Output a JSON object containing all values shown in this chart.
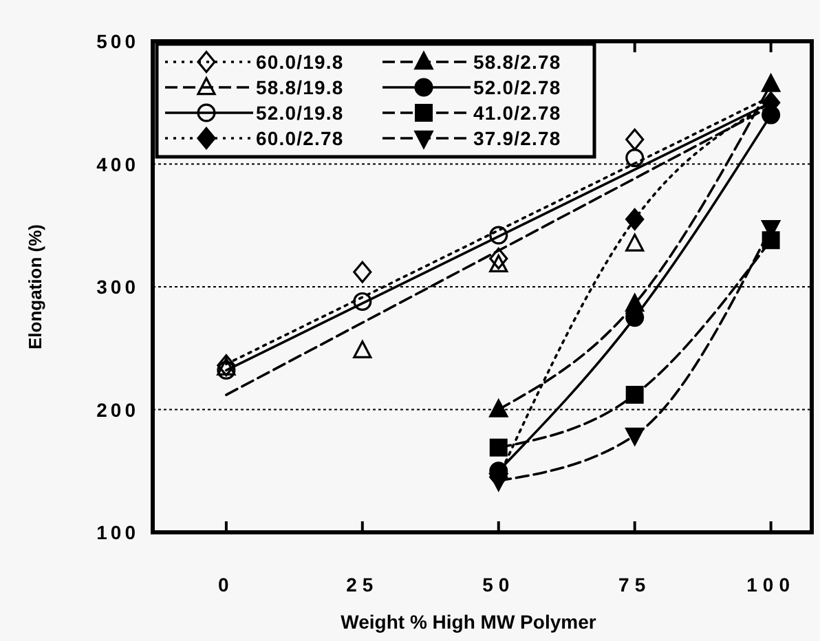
{
  "chart_data": {
    "type": "line",
    "xlabel": "Weight % High MW Polymer",
    "ylabel": "Elongation (%)",
    "xlim": [
      -13.5,
      107.5
    ],
    "ylim": [
      100,
      500
    ],
    "xticks": [
      0,
      25,
      50,
      75,
      100
    ],
    "yticks": [
      100,
      200,
      300,
      400,
      500
    ],
    "grid": "y",
    "legend": "top left",
    "series": [
      {
        "name": "60.0/19.8",
        "type": "scatter",
        "color": "#000000",
        "marker": "diamond",
        "line_style": "dotted",
        "x": [
          0,
          25,
          50,
          75
        ],
        "values": [
          236,
          312,
          323,
          420
        ]
      },
      {
        "name": "58.8/19.8",
        "type": "scatter",
        "color": "#000000",
        "marker": "triangle",
        "line_style": "dashed",
        "x": [
          0,
          25,
          50,
          75
        ],
        "values": [
          234,
          248,
          318,
          335
        ]
      },
      {
        "name": "52.0/19.8",
        "type": "scatter",
        "color": "#000000",
        "marker": "circle",
        "line_style": "solid",
        "x": [
          0,
          25,
          50,
          75
        ],
        "values": [
          232,
          288,
          342,
          405
        ]
      },
      {
        "name": "60.0/2.78",
        "color": "#000000",
        "marker": "diamond",
        "line_style": "dotted",
        "x": [
          50,
          75,
          100
        ],
        "values": [
          145,
          355,
          450
        ]
      },
      {
        "name": "58.8/2.78",
        "color": "#000000",
        "marker": "triangle",
        "line_style": "dashed",
        "x": [
          50,
          75,
          100
        ],
        "values": [
          200,
          286,
          465
        ]
      },
      {
        "name": "52.0/2.78",
        "color": "#000000",
        "marker": "circle",
        "line_style": "solid",
        "x": [
          50,
          75,
          100
        ],
        "values": [
          150,
          275,
          440
        ]
      },
      {
        "name": "41.0/2.78",
        "color": "#000000",
        "marker": "square",
        "line_style": "dashed",
        "x": [
          50,
          75,
          100
        ],
        "values": [
          169,
          212,
          338
        ]
      },
      {
        "name": "37.9/2.78",
        "color": "#000000",
        "marker": "triangle-down",
        "line_style": "dashed",
        "x": [
          50,
          75,
          100
        ],
        "values": [
          142,
          179,
          348
        ]
      },
      {
        "color": "#000000",
        "marker": "none",
        "line_style": "dotted",
        "x": [
          0,
          100
        ],
        "values": [
          237,
          455
        ]
      },
      {
        "color": "#000000",
        "marker": "none",
        "line_style": "dashed",
        "x": [
          0,
          100
        ],
        "values": [
          212,
          447
        ]
      },
      {
        "color": "#000000",
        "marker": "none",
        "line_style": "solid",
        "x": [
          0,
          100
        ],
        "values": [
          232,
          450
        ]
      }
    ]
  }
}
